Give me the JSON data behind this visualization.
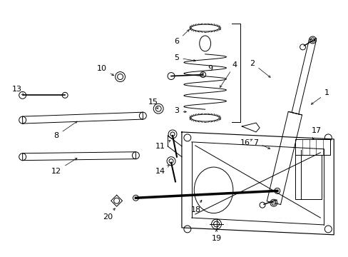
{
  "bg_color": "#ffffff",
  "line_color": "#000000",
  "font_size": 8,
  "fig_w": 4.89,
  "fig_h": 3.6,
  "dpi": 100
}
